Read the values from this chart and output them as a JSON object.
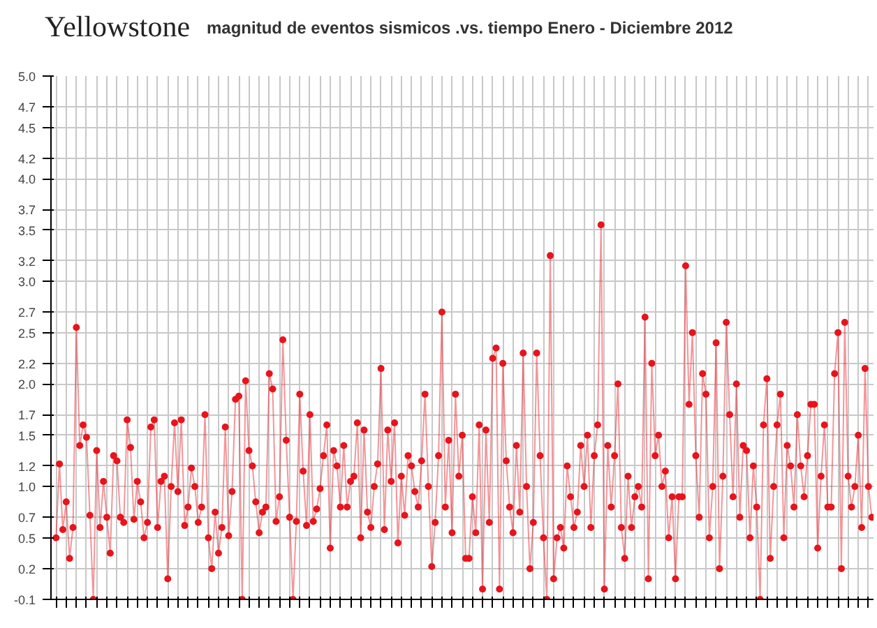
{
  "chart_data": {
    "type": "line",
    "title": "Yellowstone",
    "subtitle": "magnitud de eventos sismicos .vs. tiempo Enero - Diciembre 2012",
    "marker": "circle",
    "grid": true,
    "ylim": [
      -0.1,
      5.0
    ],
    "yticks": [
      -0.1,
      0.2,
      0.5,
      0.7,
      {
        "value": 1,
        "label": "1.0"
      },
      1.2,
      1.5,
      1.7,
      {
        "value": 2,
        "label": "2.0"
      },
      2.2,
      2.5,
      2.7,
      {
        "value": 3,
        "label": "3.0"
      },
      3.2,
      3.5,
      3.7,
      {
        "value": 4,
        "label": "4.0"
      },
      4.2,
      4.5,
      4.7,
      {
        "value": 5,
        "label": "5.0"
      }
    ],
    "series": [
      {
        "color": "#e8141c",
        "values": [
          0.5,
          1.22,
          0.58,
          0.85,
          0.3,
          0.6,
          2.55,
          1.4,
          1.6,
          1.48,
          0.72,
          -0.1,
          1.35,
          0.6,
          1.05,
          0.7,
          0.35,
          1.3,
          1.25,
          0.7,
          0.65,
          1.65,
          1.38,
          0.68,
          1.05,
          0.85,
          0.5,
          0.65,
          1.58,
          1.65,
          0.6,
          1.05,
          1.1,
          0.1,
          1.0,
          1.62,
          0.95,
          1.65,
          0.62,
          0.8,
          1.18,
          1.0,
          0.65,
          0.8,
          1.7,
          0.5,
          0.2,
          0.75,
          0.35,
          0.6,
          1.58,
          0.52,
          0.95,
          1.85,
          1.88,
          -0.1,
          2.03,
          1.35,
          1.2,
          0.85,
          0.55,
          0.75,
          0.8,
          2.1,
          1.95,
          0.66,
          0.9,
          2.43,
          1.45,
          0.7,
          -0.1,
          0.66,
          1.9,
          1.15,
          0.62,
          1.7,
          0.66,
          0.78,
          0.98,
          1.3,
          1.6,
          0.4,
          1.35,
          1.2,
          0.8,
          1.4,
          0.8,
          1.05,
          1.1,
          1.62,
          0.5,
          1.55,
          0.75,
          0.6,
          1.0,
          1.22,
          2.15,
          0.58,
          1.55,
          1.05,
          1.62,
          0.45,
          1.1,
          0.72,
          1.3,
          1.2,
          0.95,
          0.8,
          1.25,
          1.9,
          1.0,
          0.22,
          0.65,
          1.3,
          2.7,
          0.8,
          1.45,
          0.55,
          1.9,
          1.1,
          1.5,
          0.3,
          0.3,
          0.9,
          0.55,
          1.6,
          0.0,
          1.55,
          0.65,
          2.25,
          2.35,
          0.0,
          2.2,
          1.25,
          0.8,
          0.55,
          1.4,
          0.75,
          2.3,
          1.0,
          0.2,
          0.65,
          2.3,
          1.3,
          0.5,
          -0.1,
          3.25,
          0.1,
          0.5,
          0.6,
          0.4,
          1.2,
          0.9,
          0.6,
          0.75,
          1.4,
          1.0,
          1.5,
          0.6,
          1.3,
          1.6,
          3.55,
          0.0,
          1.4,
          0.8,
          1.3,
          2.0,
          0.6,
          0.3,
          1.1,
          0.6,
          0.9,
          1.0,
          0.8,
          2.65,
          0.1,
          2.2,
          1.3,
          1.5,
          1.0,
          1.15,
          0.5,
          0.9,
          0.1,
          0.9,
          0.9,
          3.15,
          1.8,
          2.5,
          1.3,
          0.7,
          2.1,
          1.9,
          0.5,
          1.0,
          2.4,
          0.2,
          1.1,
          2.6,
          1.7,
          0.9,
          2.0,
          0.7,
          1.4,
          1.35,
          0.5,
          1.2,
          0.8,
          -0.1,
          1.6,
          2.05,
          0.3,
          1.0,
          1.6,
          1.9,
          0.5,
          1.4,
          1.2,
          0.8,
          1.7,
          1.2,
          0.9,
          1.3,
          1.8,
          1.8,
          0.4,
          1.1,
          1.6,
          0.8,
          0.8,
          2.1,
          2.5,
          0.2,
          2.6,
          1.1,
          0.8,
          1.0,
          1.5,
          0.6,
          2.15,
          1.0,
          0.7
        ]
      }
    ]
  }
}
